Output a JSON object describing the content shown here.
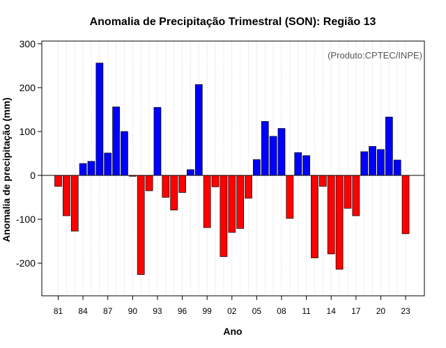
{
  "chart_data": {
    "type": "bar",
    "title": "Anomalia de Precipitação Trimestral (SON): Região 13",
    "xlabel": "Ano",
    "ylabel": "Anomalia de precipitação (mm)",
    "credit": "(Produto:CPTEC/INPE)",
    "ylim": [
      -275,
      310
    ],
    "yticks": [
      -200,
      -100,
      0,
      100,
      200,
      300
    ],
    "xtick_labels": [
      "81",
      "84",
      "87",
      "90",
      "93",
      "96",
      "99",
      "02",
      "05",
      "08",
      "11",
      "14",
      "17",
      "20",
      "23"
    ],
    "xtick_every": 3,
    "grid": "vertical-dotted",
    "positive_color": "#0000ff",
    "negative_color": "#ff0000",
    "years": [
      1981,
      1982,
      1983,
      1984,
      1985,
      1986,
      1987,
      1988,
      1989,
      1990,
      1991,
      1992,
      1993,
      1994,
      1995,
      1996,
      1997,
      1998,
      1999,
      2000,
      2001,
      2002,
      2003,
      2004,
      2005,
      2006,
      2007,
      2008,
      2009,
      2010,
      2011,
      2012,
      2013,
      2014,
      2015,
      2016,
      2017,
      2018,
      2019,
      2020,
      2021,
      2022,
      2023
    ],
    "values": [
      -25,
      -92,
      -127,
      27,
      32,
      256,
      51,
      156,
      100,
      -2,
      -226,
      -35,
      155,
      -50,
      -79,
      -39,
      13,
      207,
      -119,
      -26,
      -185,
      -130,
      -121,
      -52,
      36,
      123,
      89,
      107,
      -98,
      52,
      45,
      -188,
      -25,
      -179,
      -214,
      -75,
      -92,
      54,
      66,
      59,
      133,
      35,
      -133
    ]
  }
}
